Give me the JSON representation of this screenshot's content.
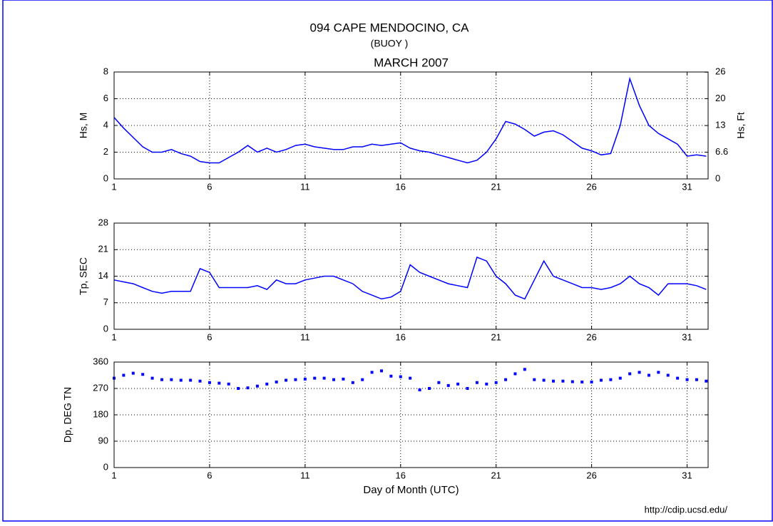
{
  "header": {
    "title": "094 CAPE MENDOCINO, CA",
    "subtitle": "(BUOY )"
  },
  "footer": "http://cdip.ucsd.edu/",
  "chart_data": [
    {
      "type": "line",
      "title": "MARCH 2007",
      "ylabel": "Hs, M",
      "y2label": "Hs, Ft",
      "color": "#0000ff",
      "grid": true,
      "xlim": [
        1,
        32.1
      ],
      "xticks": [
        1,
        6,
        11,
        16,
        21,
        26,
        31
      ],
      "ylim": [
        0,
        8
      ],
      "yticks": [
        0,
        2,
        4,
        6,
        8
      ],
      "y2lim": [
        0,
        26.25
      ],
      "y2ticks": [
        0,
        {
          "value": 6.56,
          "label": "6.6"
        },
        {
          "value": 13.1,
          "label": "13"
        },
        {
          "value": 19.7,
          "label": "20"
        },
        {
          "value": 26.2,
          "label": "26"
        }
      ],
      "x": [
        1,
        1.5,
        2,
        2.5,
        3,
        3.5,
        4,
        4.5,
        5,
        5.5,
        6,
        6.5,
        7,
        7.5,
        8,
        8.5,
        9,
        9.5,
        10,
        10.5,
        11,
        11.5,
        12,
        12.5,
        13,
        13.5,
        14,
        14.5,
        15,
        15.5,
        16,
        16.5,
        17,
        17.5,
        18,
        18.5,
        19,
        19.5,
        20,
        20.5,
        21,
        21.5,
        22,
        22.5,
        23,
        23.5,
        24,
        24.5,
        25,
        25.5,
        26,
        26.5,
        27,
        27.5,
        28,
        28.5,
        29,
        29.5,
        30,
        30.5,
        31,
        31.5,
        32
      ],
      "values": [
        4.6,
        3.8,
        3.1,
        2.4,
        2.0,
        2.0,
        2.2,
        1.9,
        1.7,
        1.3,
        1.2,
        1.2,
        1.6,
        2.0,
        2.5,
        2.0,
        2.3,
        2.0,
        2.2,
        2.5,
        2.6,
        2.4,
        2.3,
        2.2,
        2.2,
        2.4,
        2.4,
        2.6,
        2.5,
        2.6,
        2.7,
        2.3,
        2.1,
        2.0,
        1.8,
        1.6,
        1.4,
        1.2,
        1.4,
        2.0,
        3.0,
        4.3,
        4.1,
        3.7,
        3.2,
        3.5,
        3.6,
        3.3,
        2.8,
        2.3,
        2.1,
        1.8,
        1.9,
        4.0,
        7.5,
        5.5,
        4.0,
        3.4,
        3.0,
        2.6,
        1.7,
        1.8,
        1.7
      ]
    },
    {
      "type": "line",
      "ylabel": "Tp, SEC",
      "color": "#0000ff",
      "grid": true,
      "xlim": [
        1,
        32.1
      ],
      "xticks": [
        1,
        6,
        11,
        16,
        21,
        26,
        31
      ],
      "ylim": [
        0,
        28
      ],
      "yticks": [
        0,
        7,
        14,
        21,
        28
      ],
      "x": [
        1,
        1.5,
        2,
        2.5,
        3,
        3.5,
        4,
        4.5,
        5,
        5.5,
        6,
        6.5,
        7,
        7.5,
        8,
        8.5,
        9,
        9.5,
        10,
        10.5,
        11,
        11.5,
        12,
        12.5,
        13,
        13.5,
        14,
        14.5,
        15,
        15.5,
        16,
        16.5,
        17,
        17.5,
        18,
        18.5,
        19,
        19.5,
        20,
        20.5,
        21,
        21.5,
        22,
        22.5,
        23,
        23.5,
        24,
        24.5,
        25,
        25.5,
        26,
        26.5,
        27,
        27.5,
        28,
        28.5,
        29,
        29.5,
        30,
        30.5,
        31,
        31.5,
        32
      ],
      "values": [
        13,
        12.5,
        12,
        11,
        10,
        9.5,
        10,
        10,
        10,
        16,
        15,
        11,
        11,
        11,
        11,
        11.5,
        10.5,
        13,
        12,
        12,
        13,
        13.5,
        14,
        14,
        13,
        12,
        10,
        9,
        8,
        8.5,
        10,
        17,
        15,
        14,
        13,
        12,
        11.5,
        11,
        19,
        18,
        14,
        12,
        9,
        8,
        13,
        18,
        14,
        13,
        12,
        11,
        11,
        10.5,
        11,
        12,
        14,
        12,
        11,
        9,
        12,
        12,
        12,
        11.5,
        10.5
      ]
    },
    {
      "type": "scatter",
      "ylabel": "Dp, DEG TN",
      "xlabel": "Day of Month (UTC)",
      "color": "#0000ff",
      "grid": true,
      "xlim": [
        1,
        32.1
      ],
      "xticks": [
        1,
        6,
        11,
        16,
        21,
        26,
        31
      ],
      "ylim": [
        0,
        360
      ],
      "yticks": [
        0,
        90,
        180,
        270,
        360
      ],
      "x": [
        1,
        1.5,
        2,
        2.5,
        3,
        3.5,
        4,
        4.5,
        5,
        5.5,
        6,
        6.5,
        7,
        7.5,
        8,
        8.5,
        9,
        9.5,
        10,
        10.5,
        11,
        11.5,
        12,
        12.5,
        13,
        13.5,
        14,
        14.5,
        15,
        15.5,
        16,
        16.5,
        17,
        17.5,
        18,
        18.5,
        19,
        19.5,
        20,
        20.5,
        21,
        21.5,
        22,
        22.5,
        23,
        23.5,
        24,
        24.5,
        25,
        25.5,
        26,
        26.5,
        27,
        27.5,
        28,
        28.5,
        29,
        29.5,
        30,
        30.5,
        31,
        31.5,
        32
      ],
      "values": [
        305,
        315,
        322,
        318,
        305,
        300,
        300,
        298,
        298,
        295,
        290,
        288,
        285,
        270,
        272,
        278,
        285,
        292,
        298,
        300,
        302,
        305,
        305,
        300,
        302,
        290,
        300,
        325,
        330,
        312,
        310,
        305,
        265,
        270,
        290,
        280,
        285,
        270,
        290,
        285,
        290,
        300,
        320,
        335,
        300,
        298,
        295,
        295,
        293,
        292,
        292,
        298,
        300,
        305,
        320,
        325,
        315,
        325,
        315,
        305,
        300,
        300,
        295
      ]
    }
  ]
}
